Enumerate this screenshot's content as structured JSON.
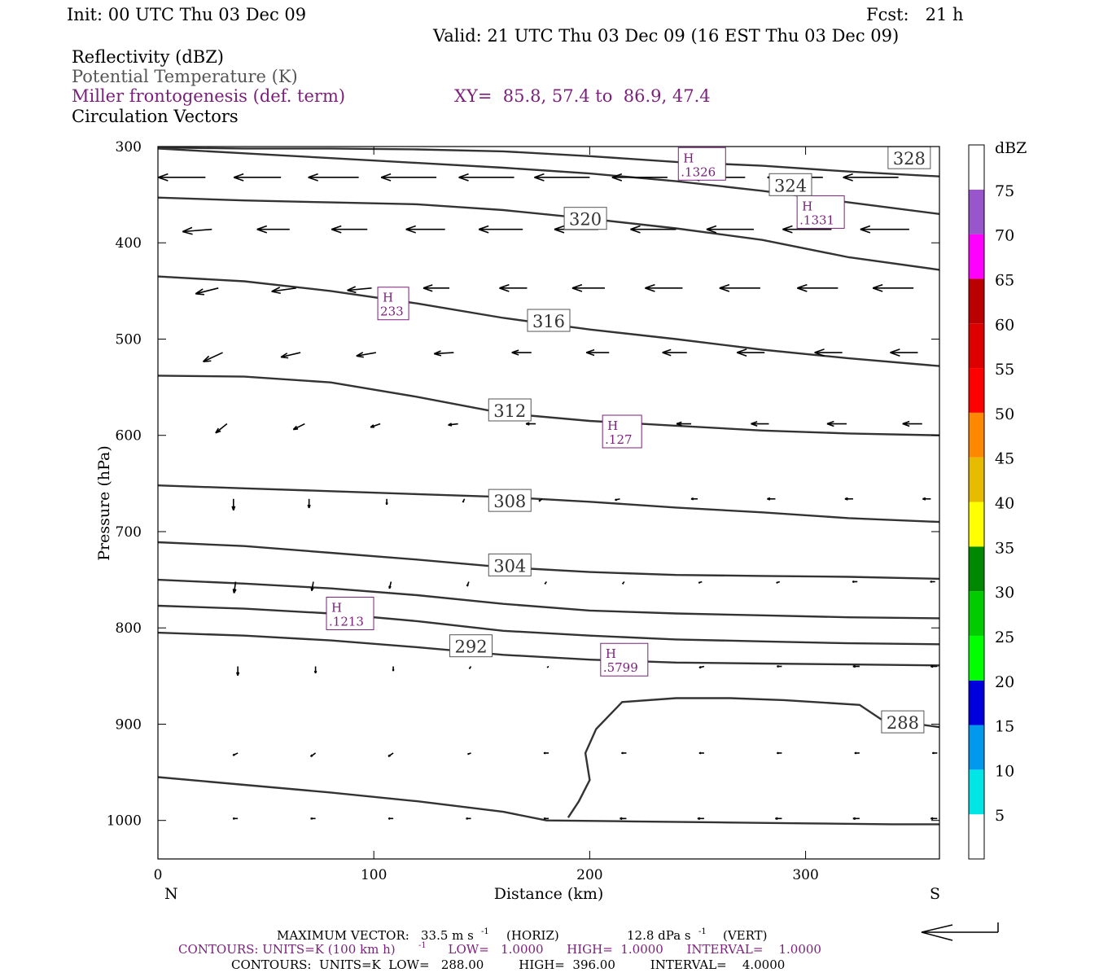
{
  "header": {
    "init": "Init: 00 UTC Thu 03 Dec 09",
    "fcst": "Fcst:   21 h",
    "valid": "Valid: 21 UTC Thu 03 Dec 09 (16 EST Thu 03 Dec 09)",
    "field1": "Reflectivity (dBZ)",
    "field2": "Potential Temperature (K)",
    "field3": "Miller frontogenesis (def. term)",
    "xy": "XY=  85.8, 57.4 to  86.9, 47.4",
    "field4": "Circulation Vectors"
  },
  "footer": {
    "max_vector_label": "MAXIMUM VECTOR:",
    "max_vector_horiz": "33.5 m s",
    "horiz_tag": "(HORIZ)",
    "max_vector_vert": "12.8 dPa s",
    "vert_tag": "(VERT)",
    "exp": "-1",
    "contours_fronto_a": "CONTOURS:  UNITS=K (100 km h)",
    "contours_fronto_b": "  LOW=   1.0000      HIGH=  1.0000      INTERVAL=    1.0000",
    "contours_theta": "CONTOURS:  UNITS=K  LOW=   288.00         HIGH=  396.00         INTERVAL=    4.0000"
  },
  "colors": {
    "theta": "#333333",
    "fronto": "#7a1f7a",
    "frame": "#000000"
  },
  "chart_data": {
    "type": "cross-section",
    "xlabel": "Distance (km)",
    "ylabel": "Pressure (hPa)",
    "xlim": [
      0,
      362
    ],
    "ylim": [
      1040,
      300
    ],
    "x_ticks": [
      "0",
      "100",
      "200",
      "300"
    ],
    "y_ticks": [
      "300",
      "400",
      "500",
      "600",
      "700",
      "800",
      "900",
      "1000"
    ],
    "x_end_labels": {
      "left": "N",
      "right": "S"
    },
    "theta_contours": [
      {
        "label": "328",
        "x": [
          0,
          40,
          80,
          120,
          160,
          200,
          240,
          280,
          320,
          362
        ],
        "y": [
          301,
          302,
          302,
          303,
          305,
          310,
          316,
          320,
          326,
          331
        ]
      },
      {
        "label": "324",
        "x": [
          0,
          40,
          80,
          120,
          160,
          200,
          240,
          280,
          320,
          362
        ],
        "y": [
          302,
          307,
          312,
          317,
          322,
          328,
          336,
          346,
          358,
          370
        ]
      },
      {
        "label": "320",
        "x": [
          0,
          40,
          80,
          120,
          160,
          200,
          240,
          280,
          320,
          362
        ],
        "y": [
          353,
          356,
          358,
          360,
          366,
          375,
          385,
          397,
          415,
          428
        ]
      },
      {
        "label": "316",
        "x": [
          0,
          40,
          80,
          120,
          160,
          200,
          240,
          280,
          320,
          362
        ],
        "y": [
          435,
          440,
          450,
          463,
          478,
          490,
          500,
          511,
          520,
          528
        ]
      },
      {
        "label": "312",
        "x": [
          0,
          40,
          80,
          120,
          160,
          200,
          240,
          280,
          320,
          362
        ],
        "y": [
          538,
          539,
          545,
          560,
          577,
          585,
          590,
          595,
          598,
          600
        ]
      },
      {
        "label": "308",
        "x": [
          0,
          40,
          80,
          120,
          160,
          200,
          240,
          280,
          320,
          362
        ],
        "y": [
          652,
          655,
          658,
          661,
          664,
          669,
          675,
          680,
          686,
          690
        ]
      },
      {
        "label": "304",
        "x": [
          0,
          40,
          80,
          120,
          160,
          200,
          240,
          280,
          320,
          362
        ],
        "y": [
          711,
          715,
          722,
          729,
          737,
          742,
          745,
          746,
          747,
          749
        ]
      },
      {
        "label": "",
        "x": [
          0,
          40,
          80,
          120,
          160,
          200,
          240,
          280,
          320,
          362
        ],
        "y": [
          750,
          754,
          759,
          766,
          775,
          782,
          785,
          787,
          789,
          790
        ]
      },
      {
        "label": "",
        "x": [
          0,
          40,
          80,
          120,
          160,
          200,
          240,
          280,
          320,
          362
        ],
        "y": [
          777,
          780,
          785,
          793,
          803,
          808,
          812,
          814,
          816,
          817
        ]
      },
      {
        "label": "292",
        "x": [
          0,
          40,
          80,
          120,
          160,
          200,
          240,
          280,
          320,
          362
        ],
        "y": [
          805,
          808,
          813,
          820,
          828,
          833,
          836,
          837,
          838,
          839
        ]
      },
      {
        "label": "288",
        "x": [
          190,
          195,
          200,
          198,
          203,
          215,
          240,
          265,
          290,
          325,
          335,
          362
        ],
        "y": [
          997,
          980,
          958,
          930,
          905,
          877,
          873,
          873,
          875,
          880,
          895,
          903
        ]
      },
      {
        "label": "",
        "x": [
          0,
          40,
          80,
          120,
          160,
          180,
          220,
          260,
          300,
          340,
          362
        ],
        "y": [
          955,
          963,
          971,
          980,
          991,
          1000,
          1001,
          1002,
          1003,
          1004,
          1004
        ]
      }
    ],
    "fronto_highs": [
      {
        "x": 252,
        "p": 318,
        "label": "H",
        "value": ".1326"
      },
      {
        "x": 307,
        "p": 368,
        "label": "H",
        "value": ".1331"
      },
      {
        "x": 109,
        "p": 463,
        "label": "H",
        "value": "233"
      },
      {
        "x": 215,
        "p": 596,
        "label": "H",
        "value": ".127"
      },
      {
        "x": 89,
        "p": 785,
        "label": "H",
        "value": ".1213"
      },
      {
        "x": 216,
        "p": 833,
        "label": "H",
        "value": ".5799"
      }
    ],
    "vector_rows": [
      {
        "p": 332,
        "x": [
          22,
          57,
          93,
          129,
          165,
          200,
          236,
          272,
          308,
          343
        ],
        "dx": [
          -29,
          -29,
          -31,
          -34,
          -34,
          -34,
          -34,
          -34,
          -34,
          -34
        ],
        "dy": [
          0,
          0,
          0,
          0,
          0,
          0,
          0,
          0,
          0,
          0
        ]
      },
      {
        "p": 386,
        "x": [
          25,
          61,
          97,
          133,
          169,
          204,
          240,
          276,
          312,
          348
        ],
        "dx": [
          -18,
          -20,
          -22,
          -24,
          -27,
          -27,
          -28,
          -29,
          -30,
          -30
        ],
        "dy": [
          2,
          0,
          0,
          0,
          0,
          0,
          0,
          0,
          0,
          0
        ]
      },
      {
        "p": 447,
        "x": [
          28,
          64,
          99,
          135,
          171,
          207,
          243,
          279,
          315,
          350
        ],
        "dx": [
          -14,
          -15,
          -15,
          -16,
          -17,
          -20,
          -23,
          -25,
          -25,
          -25
        ],
        "dy": [
          5,
          3,
          2,
          0,
          0,
          0,
          0,
          0,
          0,
          0
        ]
      },
      {
        "p": 514,
        "x": [
          30,
          66,
          101,
          137,
          173,
          209,
          245,
          281,
          317,
          352
        ],
        "dx": [
          -12,
          -12,
          -12,
          -12,
          -12,
          -14,
          -15,
          -17,
          -17,
          -17
        ],
        "dy": [
          8,
          4,
          3,
          1,
          0,
          0,
          0,
          0,
          0,
          0
        ]
      },
      {
        "p": 588,
        "x": [
          32,
          68,
          103,
          139,
          175,
          211,
          247,
          283,
          319,
          354
        ],
        "dx": [
          -7,
          -7,
          -6,
          -6,
          -6,
          -6,
          -9,
          -11,
          -12,
          -12
        ],
        "dy": [
          8,
          5,
          3,
          1,
          0,
          0,
          0,
          0,
          0,
          0
        ]
      },
      {
        "p": 666,
        "x": [
          35,
          70,
          106,
          142,
          178,
          214,
          250,
          286,
          322,
          358
        ],
        "dx": [
          0,
          0,
          0,
          -1,
          -2,
          -3,
          -4,
          -5,
          -5,
          -5
        ],
        "dy": [
          10,
          8,
          5,
          3,
          2,
          1,
          0,
          0,
          0,
          0
        ]
      },
      {
        "p": 752,
        "x": [
          36,
          72,
          108,
          144,
          180,
          216,
          252,
          288,
          324,
          360
        ],
        "dx": [
          -1,
          -1,
          -1,
          -1,
          -1,
          -1,
          -2,
          -2,
          -3,
          -3
        ],
        "dy": [
          10,
          8,
          6,
          4,
          2,
          2,
          1,
          1,
          0,
          0
        ]
      },
      {
        "p": 840,
        "x": [
          37,
          73,
          109,
          145,
          181,
          217,
          253,
          289,
          325,
          361
        ],
        "dx": [
          0,
          0,
          0,
          -1,
          -1,
          -2,
          -3,
          -3,
          -4,
          -4
        ],
        "dy": [
          8,
          6,
          4,
          2,
          1,
          1,
          1,
          0,
          0,
          0
        ]
      },
      {
        "p": 930,
        "x": [
          37,
          73,
          109,
          145,
          181,
          217,
          253,
          289,
          325,
          361
        ],
        "dx": [
          -3,
          -3,
          -3,
          -2,
          -3,
          -3,
          -3,
          -3,
          -3,
          -3
        ],
        "dy": [
          2,
          3,
          3,
          1,
          0,
          0,
          0,
          0,
          0,
          0
        ]
      },
      {
        "p": 998,
        "x": [
          37,
          73,
          109,
          145,
          181,
          217,
          253,
          289,
          325,
          361
        ],
        "dx": [
          -3,
          -3,
          -3,
          -3,
          -3,
          -4,
          -4,
          -4,
          -4,
          -4
        ],
        "dy": [
          0,
          0,
          0,
          0,
          0,
          0,
          0,
          0,
          0,
          0
        ]
      }
    ],
    "colorbar": {
      "title": "dBZ",
      "levels": [
        "5",
        "10",
        "15",
        "20",
        "25",
        "30",
        "35",
        "40",
        "45",
        "50",
        "55",
        "60",
        "65",
        "70",
        "75"
      ],
      "colors": [
        "#ffffff",
        "#00e6e6",
        "#0099ee",
        "#0000dd",
        "#00ff00",
        "#00cc00",
        "#008800",
        "#ffff00",
        "#e6bb00",
        "#ff8800",
        "#ff0000",
        "#dd0000",
        "#bb0000",
        "#ff00ff",
        "#9955cc",
        "#ffffff"
      ]
    }
  }
}
